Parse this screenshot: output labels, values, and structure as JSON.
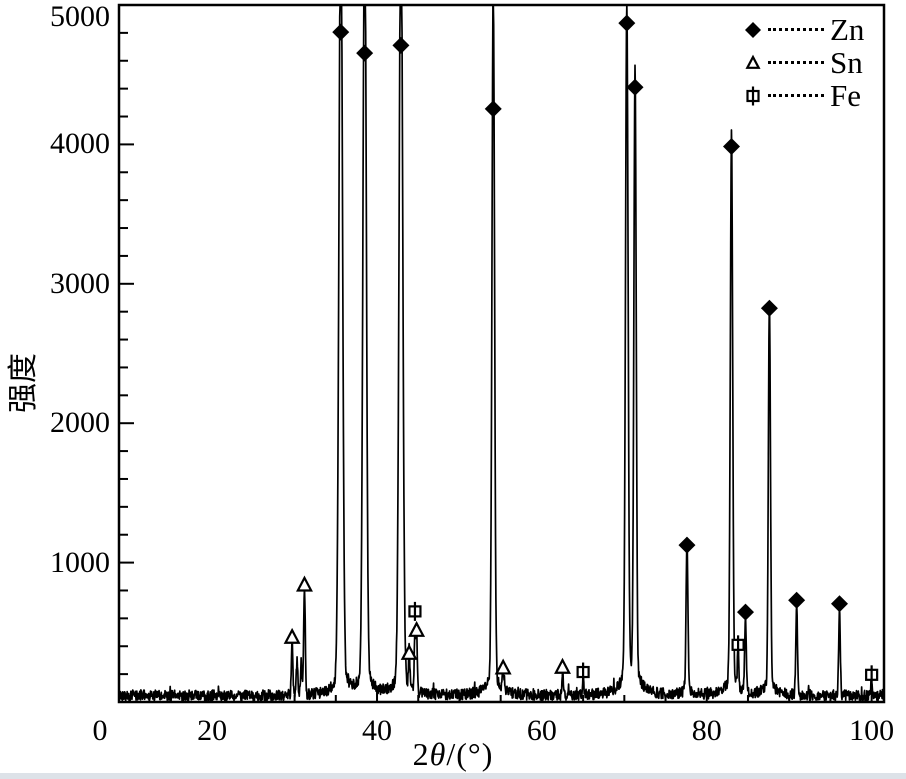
{
  "figure": {
    "background": "#ffffff",
    "ink": "#000000",
    "bottom_strip_color": "#dde2e8"
  },
  "chart_data": {
    "type": "line",
    "title": "",
    "xlabel": {
      "pre": "2",
      "theta": "θ",
      "post": "/(°)"
    },
    "xlabel_text": "2θ/(°)",
    "ylabel": "强度",
    "x_ticks": [
      0,
      20,
      40,
      60,
      80,
      100
    ],
    "y_ticks": [
      1000,
      2000,
      3000,
      4000,
      5000
    ],
    "xlim_rendered": [
      8.7,
      101.5
    ],
    "ylim": [
      0,
      5000
    ],
    "y_minor_step": 200,
    "x_minor_step": 5,
    "clip_max": 5000,
    "grid": "off",
    "legend_position": "top-right-inside",
    "legend": [
      {
        "label": "Zn",
        "marker": "filled-diamond"
      },
      {
        "label": "Sn",
        "marker": "open-triangle"
      },
      {
        "label": "Fe",
        "marker": "open-square-bar"
      }
    ],
    "series": [
      {
        "name": "Zn",
        "marker": "filled-diamond",
        "peaks": [
          {
            "two_theta": 35.6,
            "peak": 5600,
            "marker_y": 4805,
            "w": 0.3
          },
          {
            "two_theta": 38.5,
            "peak": 5600,
            "marker_y": 4655,
            "w": 0.28
          },
          {
            "two_theta": 42.9,
            "peak": 5600,
            "marker_y": 4710,
            "w": 0.3
          },
          {
            "two_theta": 54.1,
            "peak": 4950,
            "marker_y": 4255,
            "w": 0.22
          },
          {
            "two_theta": 70.3,
            "peak": 4790,
            "marker_y": 4870,
            "w": 0.22
          },
          {
            "two_theta": 71.3,
            "peak": 4340,
            "marker_y": 4410,
            "w": 0.2
          },
          {
            "two_theta": 77.6,
            "peak": 1055,
            "marker_y": 1125,
            "w": 0.16
          },
          {
            "two_theta": 83.0,
            "peak": 3905,
            "marker_y": 3985,
            "w": 0.2
          },
          {
            "two_theta": 84.7,
            "peak": 530,
            "marker_y": 645,
            "w": 0.14
          },
          {
            "two_theta": 87.6,
            "peak": 2740,
            "marker_y": 2825,
            "w": 0.18
          },
          {
            "two_theta": 90.9,
            "peak": 640,
            "marker_y": 730,
            "w": 0.14
          },
          {
            "two_theta": 96.1,
            "peak": 605,
            "marker_y": 705,
            "w": 0.14
          }
        ]
      },
      {
        "name": "Sn",
        "marker": "open-triangle",
        "peaks": [
          {
            "two_theta": 29.7,
            "peak": 390,
            "marker_y": 465,
            "w": 0.13
          },
          {
            "two_theta": 31.2,
            "peak": 765,
            "marker_y": 840,
            "w": 0.14
          },
          {
            "two_theta": 43.9,
            "peak": 280,
            "marker_y": 350,
            "w": 0.11
          },
          {
            "two_theta": 44.8,
            "peak": 420,
            "marker_y": 515,
            "w": 0.12
          },
          {
            "two_theta": 55.3,
            "peak": 170,
            "marker_y": 245,
            "w": 0.11
          },
          {
            "two_theta": 62.5,
            "peak": 175,
            "marker_y": 250,
            "w": 0.11
          }
        ]
      },
      {
        "name": "Fe",
        "marker": "open-square-bar",
        "peaks": [
          {
            "two_theta": 44.6,
            "peak": 400,
            "marker_y": 650,
            "w": 0.12
          },
          {
            "two_theta": 65.0,
            "peak": 140,
            "marker_y": 215,
            "w": 0.11
          },
          {
            "two_theta": 83.8,
            "peak": 290,
            "marker_y": 410,
            "w": 0.12
          },
          {
            "two_theta": 100.0,
            "peak": 120,
            "marker_y": 195,
            "w": 0.11
          }
        ]
      }
    ],
    "unmarked_peaks": [
      {
        "two_theta": 30.3,
        "peak": 255
      },
      {
        "two_theta": 30.8,
        "peak": 225
      }
    ],
    "baseline": {
      "level": 45,
      "noise": 40
    }
  }
}
